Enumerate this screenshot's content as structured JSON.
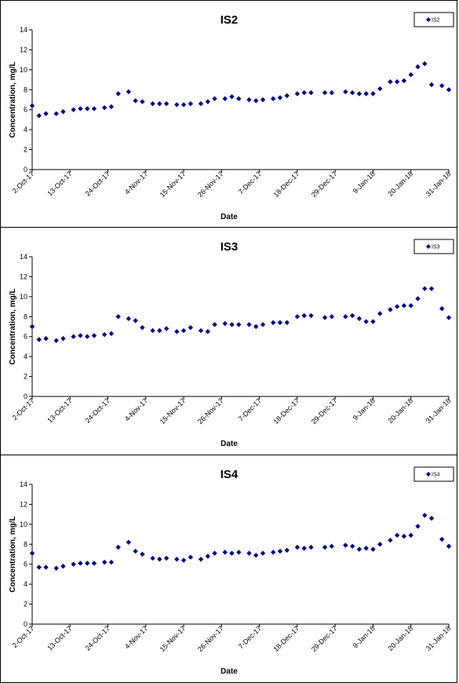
{
  "colors": {
    "marker": "#00007f",
    "axis": "#000000",
    "background": "#ffffff"
  },
  "chart_data": [
    {
      "type": "scatter",
      "title": "IS2",
      "xlabel": "Date",
      "ylabel": "Concentration, mg/L",
      "xlim": [
        "2017-10-02",
        "2018-01-31"
      ],
      "ylim": [
        0,
        14
      ],
      "yticks": [
        "0",
        "2",
        "4",
        "6",
        "8",
        "10",
        "12",
        "14"
      ],
      "xticks": [
        "2-Oct-17",
        "13-Oct-17",
        "24-Oct-17",
        "4-Nov-17",
        "15-Nov-17",
        "26-Nov-17",
        "7-Dec-17",
        "18-Dec-17",
        "29-Dec-17",
        "9-Jan-18",
        "20-Jan-18",
        "31-Jan-18"
      ],
      "grid": false,
      "legend_position": "top-right",
      "series": [
        {
          "name": "IS2",
          "marker": "diamond",
          "x": [
            "2017-10-02",
            "2017-10-04",
            "2017-10-06",
            "2017-10-09",
            "2017-10-11",
            "2017-10-14",
            "2017-10-16",
            "2017-10-18",
            "2017-10-20",
            "2017-10-23",
            "2017-10-25",
            "2017-10-27",
            "2017-10-30",
            "2017-11-01",
            "2017-11-03",
            "2017-11-06",
            "2017-11-08",
            "2017-11-10",
            "2017-11-13",
            "2017-11-15",
            "2017-11-17",
            "2017-11-20",
            "2017-11-22",
            "2017-11-24",
            "2017-11-27",
            "2017-11-29",
            "2017-12-01",
            "2017-12-04",
            "2017-12-06",
            "2017-12-08",
            "2017-12-11",
            "2017-12-13",
            "2017-12-15",
            "2017-12-18",
            "2017-12-20",
            "2017-12-22",
            "2017-12-26",
            "2017-12-28",
            "2018-01-01",
            "2018-01-03",
            "2018-01-05",
            "2018-01-07",
            "2018-01-09",
            "2018-01-11",
            "2018-01-14",
            "2018-01-16",
            "2018-01-18",
            "2018-01-20",
            "2018-01-22",
            "2018-01-24",
            "2018-01-26",
            "2018-01-29",
            "2018-01-31"
          ],
          "y": [
            6.4,
            5.4,
            5.6,
            5.6,
            5.8,
            6.0,
            6.1,
            6.1,
            6.1,
            6.2,
            6.3,
            7.6,
            7.8,
            6.9,
            6.8,
            6.6,
            6.6,
            6.6,
            6.5,
            6.5,
            6.6,
            6.6,
            6.8,
            7.1,
            7.1,
            7.3,
            7.1,
            7.0,
            6.9,
            7.0,
            7.1,
            7.2,
            7.4,
            7.6,
            7.7,
            7.7,
            7.7,
            7.7,
            7.8,
            7.7,
            7.6,
            7.6,
            7.6,
            8.1,
            8.8,
            8.8,
            8.9,
            9.5,
            10.3,
            10.6,
            8.5,
            8.4,
            8.0
          ]
        }
      ]
    },
    {
      "type": "scatter",
      "title": "IS3",
      "xlabel": "Date",
      "ylabel": "Concentration, mg/L",
      "xlim": [
        "2017-10-02",
        "2018-01-31"
      ],
      "ylim": [
        0,
        14
      ],
      "yticks": [
        "0",
        "2",
        "4",
        "6",
        "8",
        "10",
        "12",
        "14"
      ],
      "xticks": [
        "2-Oct-17",
        "13-Oct-17",
        "24-Oct-17",
        "4-Nov-17",
        "15-Nov-17",
        "26-Nov-17",
        "7-Dec-17",
        "18-Dec-17",
        "29-Dec-17",
        "9-Jan-18",
        "20-Jan-18",
        "31-Jan-18"
      ],
      "grid": false,
      "legend_position": "top-right",
      "series": [
        {
          "name": "IS3",
          "marker": "diamond",
          "x": [
            "2017-10-02",
            "2017-10-04",
            "2017-10-06",
            "2017-10-09",
            "2017-10-11",
            "2017-10-14",
            "2017-10-16",
            "2017-10-18",
            "2017-10-20",
            "2017-10-23",
            "2017-10-25",
            "2017-10-27",
            "2017-10-30",
            "2017-11-01",
            "2017-11-03",
            "2017-11-06",
            "2017-11-08",
            "2017-11-10",
            "2017-11-13",
            "2017-11-15",
            "2017-11-17",
            "2017-11-20",
            "2017-11-22",
            "2017-11-24",
            "2017-11-27",
            "2017-11-29",
            "2017-12-01",
            "2017-12-04",
            "2017-12-06",
            "2017-12-08",
            "2017-12-11",
            "2017-12-13",
            "2017-12-15",
            "2017-12-18",
            "2017-12-20",
            "2017-12-22",
            "2017-12-26",
            "2017-12-28",
            "2018-01-01",
            "2018-01-03",
            "2018-01-05",
            "2018-01-07",
            "2018-01-09",
            "2018-01-11",
            "2018-01-14",
            "2018-01-16",
            "2018-01-18",
            "2018-01-20",
            "2018-01-22",
            "2018-01-24",
            "2018-01-26",
            "2018-01-29",
            "2018-01-31"
          ],
          "y": [
            7.0,
            5.7,
            5.8,
            5.6,
            5.8,
            6.0,
            6.1,
            6.0,
            6.1,
            6.2,
            6.3,
            8.0,
            7.8,
            7.6,
            6.9,
            6.6,
            6.6,
            6.8,
            6.5,
            6.6,
            6.9,
            6.6,
            6.5,
            7.2,
            7.3,
            7.2,
            7.2,
            7.2,
            7.0,
            7.2,
            7.4,
            7.4,
            7.4,
            8.0,
            8.1,
            8.1,
            7.9,
            8.0,
            8.0,
            8.1,
            7.8,
            7.5,
            7.5,
            8.3,
            8.7,
            9.0,
            9.1,
            9.1,
            9.8,
            10.8,
            10.8,
            8.8,
            7.9
          ]
        }
      ]
    },
    {
      "type": "scatter",
      "title": "IS4",
      "xlabel": "Date",
      "ylabel": "Concentration, mg/L",
      "xlim": [
        "2017-10-02",
        "2018-01-31"
      ],
      "ylim": [
        0,
        14
      ],
      "yticks": [
        "0",
        "2",
        "4",
        "6",
        "8",
        "10",
        "12",
        "14"
      ],
      "xticks": [
        "2-Oct-17",
        "13-Oct-17",
        "24-Oct-17",
        "4-Nov-17",
        "15-Nov-17",
        "26-Nov-17",
        "7-Dec-17",
        "18-Dec-17",
        "29-Dec-17",
        "9-Jan-18",
        "20-Jan-18",
        "31-Jan-18"
      ],
      "grid": false,
      "legend_position": "top-right",
      "series": [
        {
          "name": "IS4",
          "marker": "diamond",
          "x": [
            "2017-10-02",
            "2017-10-04",
            "2017-10-06",
            "2017-10-09",
            "2017-10-11",
            "2017-10-14",
            "2017-10-16",
            "2017-10-18",
            "2017-10-20",
            "2017-10-23",
            "2017-10-25",
            "2017-10-27",
            "2017-10-30",
            "2017-11-01",
            "2017-11-03",
            "2017-11-06",
            "2017-11-08",
            "2017-11-10",
            "2017-11-13",
            "2017-11-15",
            "2017-11-17",
            "2017-11-20",
            "2017-11-22",
            "2017-11-24",
            "2017-11-27",
            "2017-11-29",
            "2017-12-01",
            "2017-12-04",
            "2017-12-06",
            "2017-12-08",
            "2017-12-11",
            "2017-12-13",
            "2017-12-15",
            "2017-12-18",
            "2017-12-20",
            "2017-12-22",
            "2017-12-26",
            "2017-12-28",
            "2018-01-01",
            "2018-01-03",
            "2018-01-05",
            "2018-01-07",
            "2018-01-09",
            "2018-01-11",
            "2018-01-14",
            "2018-01-16",
            "2018-01-18",
            "2018-01-20",
            "2018-01-22",
            "2018-01-24",
            "2018-01-26",
            "2018-01-29",
            "2018-01-31"
          ],
          "y": [
            7.1,
            5.7,
            5.7,
            5.6,
            5.8,
            6.0,
            6.1,
            6.1,
            6.1,
            6.2,
            6.2,
            7.7,
            8.2,
            7.3,
            7.0,
            6.6,
            6.5,
            6.6,
            6.5,
            6.4,
            6.7,
            6.5,
            6.8,
            7.1,
            7.2,
            7.1,
            7.2,
            7.1,
            6.9,
            7.1,
            7.2,
            7.3,
            7.4,
            7.7,
            7.6,
            7.7,
            7.7,
            7.8,
            7.9,
            7.8,
            7.5,
            7.6,
            7.5,
            8.0,
            8.4,
            8.9,
            8.8,
            8.9,
            9.8,
            10.9,
            10.6,
            8.5,
            7.8
          ]
        }
      ]
    }
  ]
}
